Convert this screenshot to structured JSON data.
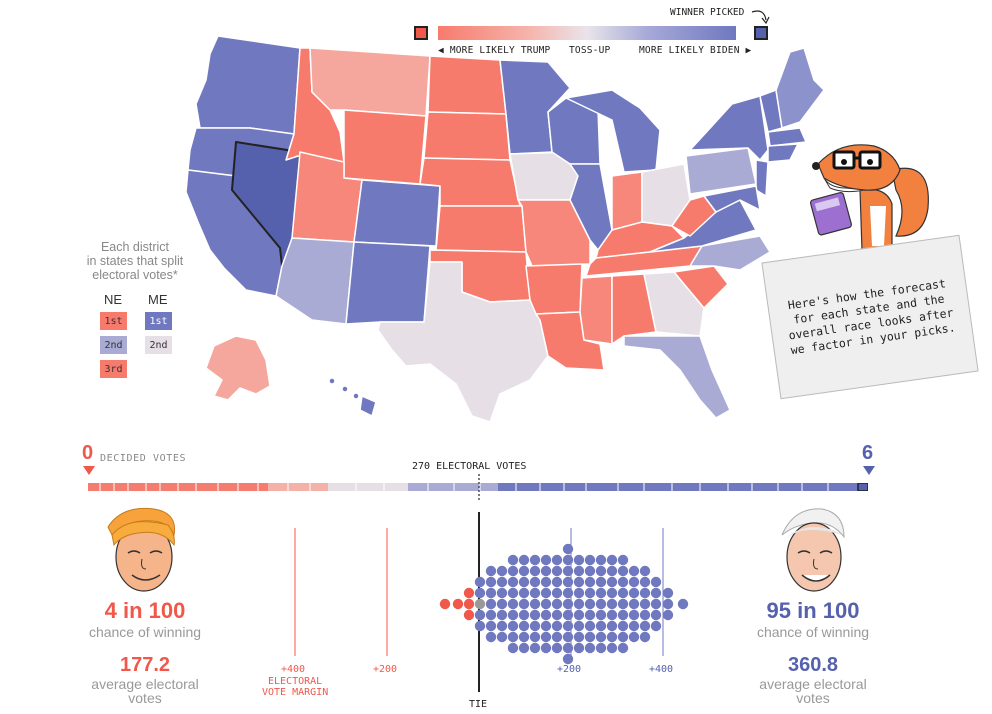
{
  "legend": {
    "winner_picked": "WINNER PICKED",
    "more_likely_trump": "◀ MORE LIKELY TRUMP",
    "toss_up": "TOSS-UP",
    "more_likely_biden": "MORE LIKELY BIDEN ▶",
    "colors": {
      "trump_picked": "#f0584b",
      "trump": "#f77b6d",
      "lean_trump": "#f6a79d",
      "toss_up": "#e6e0e6",
      "lean_biden": "#a9abd5",
      "biden": "#7078bf",
      "biden_picked": "#5561ad"
    }
  },
  "district_legend": {
    "caption_lines": [
      "Each district",
      "in states that split",
      "electoral votes*"
    ],
    "ne_label": "NE",
    "me_label": "ME",
    "ne_cells": [
      "1st",
      "2nd",
      "3rd"
    ],
    "me_cells": [
      "1st",
      "2nd"
    ]
  },
  "bubble": {
    "text": "Here's how the forecast for each state and the overall race looks after we factor in your picks."
  },
  "bar": {
    "trump_decided": "0",
    "decided_votes_label": "DECIDED VOTES",
    "center_label": "270 ELECTORAL VOTES",
    "biden_decided": "6"
  },
  "trump": {
    "odds": "4 in 100",
    "odds_sub": "chance of winning",
    "ev": "177.2",
    "ev_sub_1": "average electoral",
    "ev_sub_2": "votes"
  },
  "biden": {
    "odds": "95 in 100",
    "odds_sub": "chance of winning",
    "ev": "360.8",
    "ev_sub_1": "average electoral",
    "ev_sub_2": "votes"
  },
  "margin": {
    "trump_400": "+400",
    "trump_200": "+200",
    "electoral_1": "ELECTORAL",
    "electoral_2": "VOTE MARGIN",
    "biden_200": "+200",
    "biden_400": "+400",
    "tie": "TIE"
  }
}
